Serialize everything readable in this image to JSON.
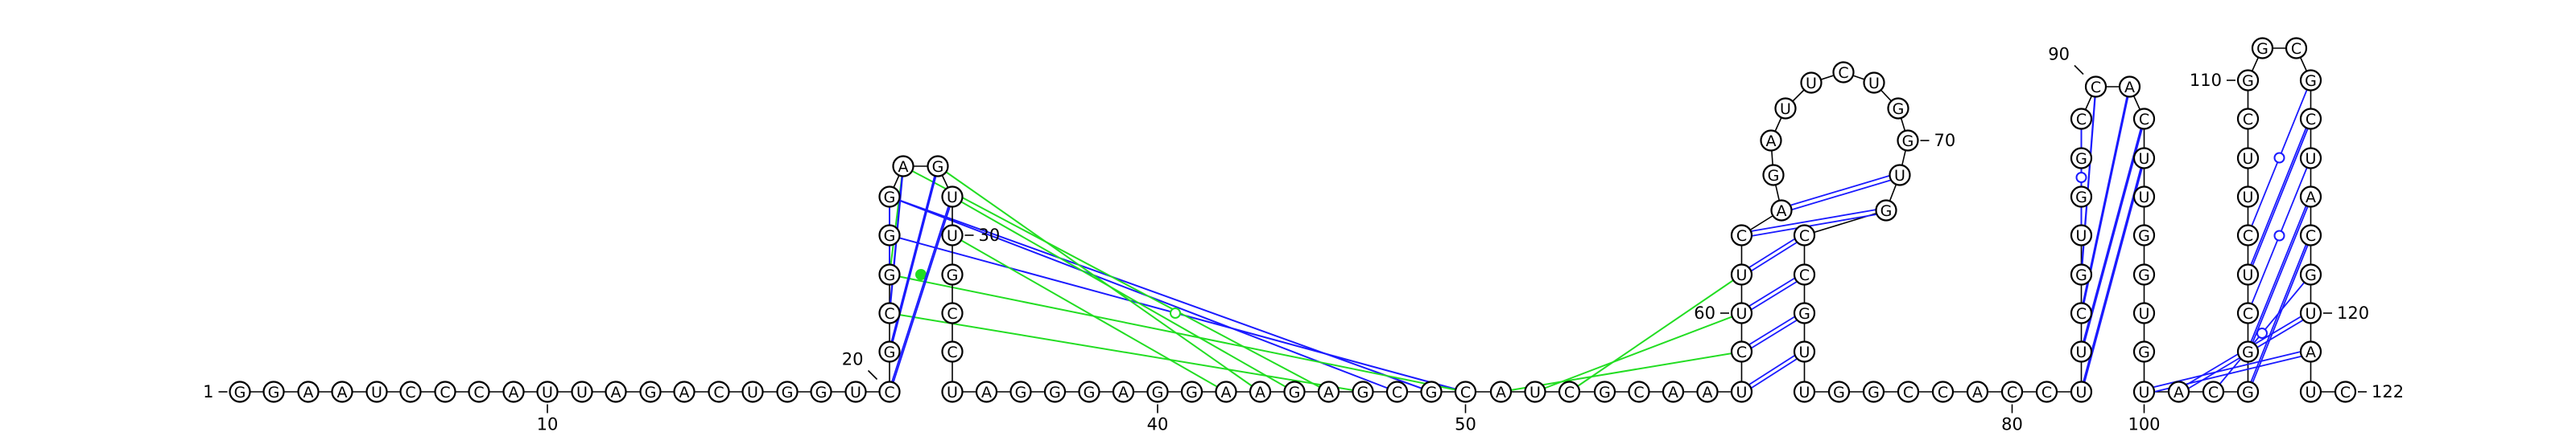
{
  "sequence": "GGAAUCCCAUUAGACUGGUCGCGGGAGUUGCCUAGGGAGGAAGAGCGCAUCGCAAUCUUCAGAUUCUGGUGCCGUUGGCCACCUUCGUGGCCACUUGGUGUACGGCUCUUCGGCGCUACGUAUC",
  "colors": {
    "base_pair": "#1a1aff",
    "pseudoknot": "#22dd22",
    "outline": "#000000"
  },
  "numbering": [
    {
      "n": 1,
      "label": "1"
    },
    {
      "n": 10,
      "label": "10"
    },
    {
      "n": 20,
      "label": "20"
    },
    {
      "n": 30,
      "label": "30"
    },
    {
      "n": 40,
      "label": "40"
    },
    {
      "n": 50,
      "label": "50"
    },
    {
      "n": 60,
      "label": "60"
    },
    {
      "n": 70,
      "label": "70"
    },
    {
      "n": 80,
      "label": "80"
    },
    {
      "n": 90,
      "label": "90"
    },
    {
      "n": 100,
      "label": "100"
    },
    {
      "n": 110,
      "label": "110"
    },
    {
      "n": 120,
      "label": "120"
    },
    {
      "n": 122,
      "label": "122"
    }
  ],
  "helix_pairs": [
    {
      "i": 20,
      "j": 28,
      "type": "WC"
    },
    {
      "i": 21,
      "j": 27,
      "type": "WC"
    },
    {
      "i": 22,
      "j": 26,
      "type": "WC"
    },
    {
      "i": 23,
      "j": 25,
      "type": "WC"
    },
    {
      "i": 56,
      "j": 75,
      "type": "WC"
    },
    {
      "i": 57,
      "j": 74,
      "type": "WC"
    },
    {
      "i": 58,
      "j": 73,
      "type": "WC"
    },
    {
      "i": 59,
      "j": 72,
      "type": "WC"
    },
    {
      "i": 60,
      "j": 71,
      "type": "WC"
    },
    {
      "i": 61,
      "j": 70,
      "type": "WC"
    },
    {
      "i": 84,
      "j": 95,
      "type": "WC"
    },
    {
      "i": 85,
      "j": 94,
      "type": "WC"
    },
    {
      "i": 86,
      "j": 93,
      "type": "WC"
    },
    {
      "i": 87,
      "j": 92,
      "type": "WC"
    },
    {
      "i": 88,
      "j": 91,
      "type": "WC"
    },
    {
      "i": 89,
      "j": 90,
      "type": "GU"
    },
    {
      "i": 101,
      "j": 122,
      "type": "WC"
    },
    {
      "i": 102,
      "j": 121,
      "type": "WC"
    },
    {
      "i": 103,
      "j": 120,
      "type": "GU"
    },
    {
      "i": 104,
      "j": 119,
      "type": "WC"
    },
    {
      "i": 105,
      "j": 118,
      "type": "WC"
    },
    {
      "i": 106,
      "j": 117,
      "type": "GU"
    },
    {
      "i": 107,
      "j": 116,
      "type": "WC"
    },
    {
      "i": 108,
      "j": 115,
      "type": "GU"
    }
  ],
  "pseudoknot_pairs": [
    {
      "i": 24,
      "j": 48,
      "color": "base_pair"
    },
    {
      "i": 25,
      "j": 47,
      "color": "base_pair"
    },
    {
      "i": 25,
      "j": 46,
      "color": "base_pair"
    },
    {
      "i": 23,
      "j": 26,
      "color": "pseudoknot"
    },
    {
      "i": 23,
      "j": 48,
      "color": "pseudoknot"
    },
    {
      "i": 26,
      "j": 44,
      "color": "pseudoknot"
    },
    {
      "i": 27,
      "j": 42,
      "color": "pseudoknot"
    },
    {
      "i": 28,
      "j": 43,
      "color": "pseudoknot"
    },
    {
      "i": 29,
      "j": 41,
      "color": "pseudoknot"
    },
    {
      "i": 22,
      "j": 45,
      "color": "pseudoknot"
    },
    {
      "i": 49,
      "j": 57,
      "color": "pseudoknot"
    },
    {
      "i": 50,
      "j": 58,
      "color": "pseudoknot"
    },
    {
      "i": 51,
      "j": 59,
      "color": "pseudoknot"
    }
  ]
}
